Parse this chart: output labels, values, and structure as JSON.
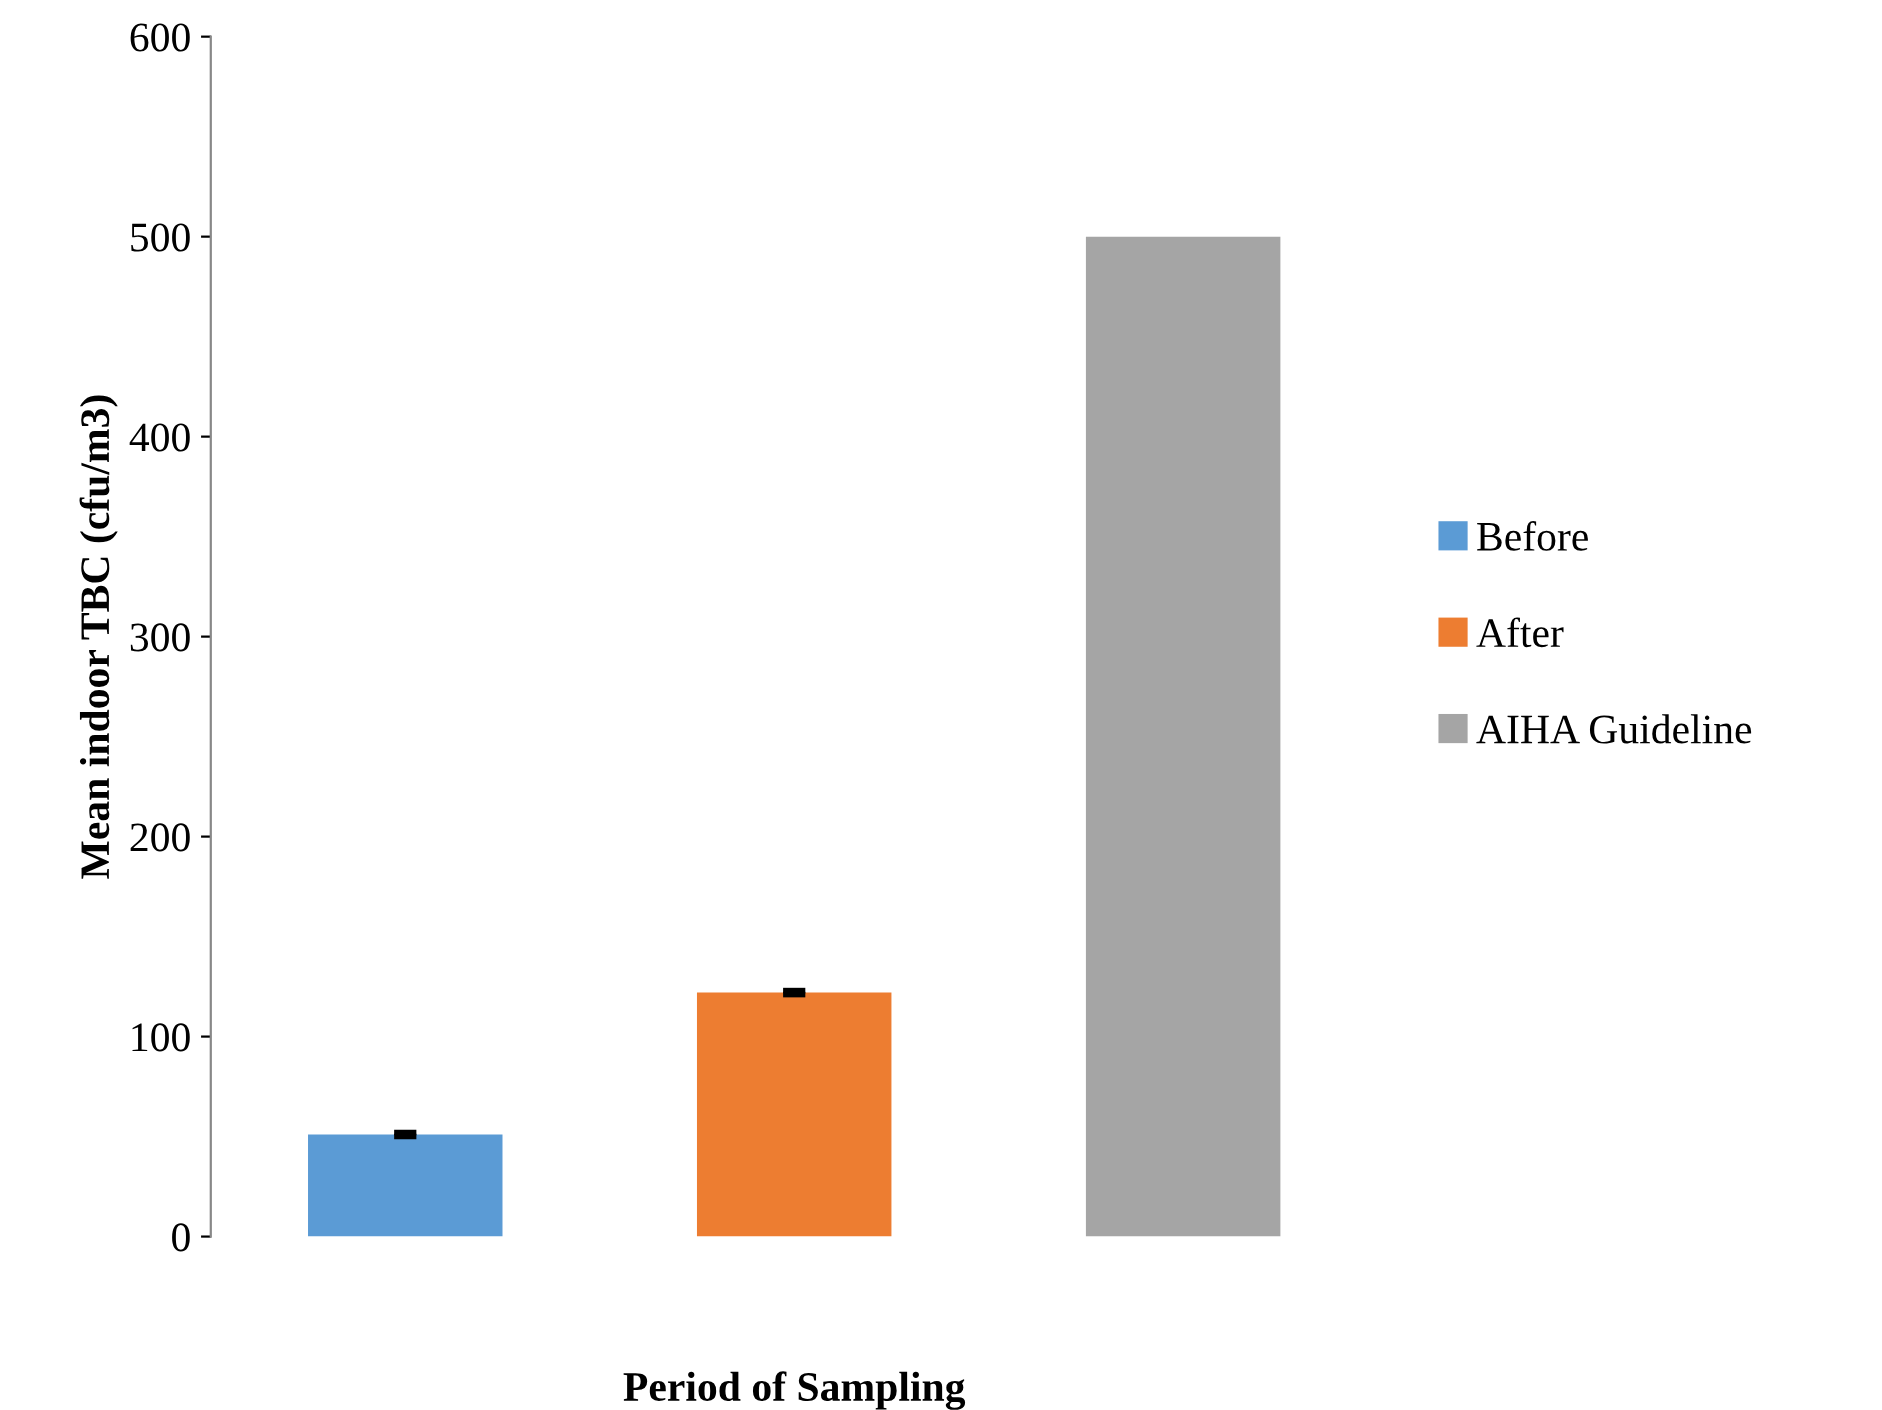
{
  "chart_data": {
    "type": "bar",
    "xlabel": "Period of Sampling",
    "ylabel": "Mean indoor TBC (cfu/m3)",
    "categories": [
      null,
      null,
      null
    ],
    "series": [
      {
        "name": "Before",
        "color": "#5b9bd5",
        "values": [
          51,
          null,
          null
        ],
        "errors": [
          1,
          null,
          null
        ]
      },
      {
        "name": "After",
        "color": "#ed7d31",
        "values": [
          null,
          122,
          null
        ],
        "errors": [
          null,
          1,
          null
        ]
      },
      {
        "name": "AIHA Guideline",
        "color": "#a5a5a5",
        "values": [
          null,
          null,
          500
        ]
      }
    ],
    "ylim": [
      0,
      600
    ],
    "yticks": [
      0,
      100,
      200,
      300,
      400,
      500,
      600
    ],
    "stacked": true,
    "grid": false,
    "legend": "right"
  }
}
